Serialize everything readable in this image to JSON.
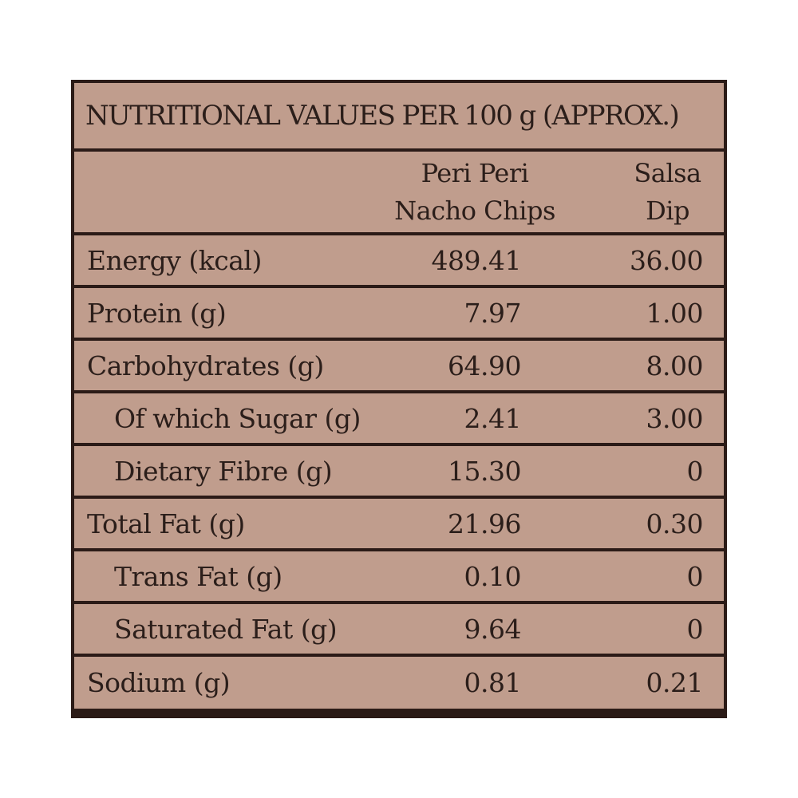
{
  "table": {
    "title": "NUTRITIONAL VALUES PER 100 g (APPROX.)",
    "columns": [
      {
        "line1": "Peri Peri",
        "line2": "Nacho Chips"
      },
      {
        "line1": "Salsa",
        "line2": "Dip"
      }
    ],
    "rows": [
      {
        "label": "Energy (kcal)",
        "chips": "489.41",
        "dip": "36.00"
      },
      {
        "label": "Protein (g)",
        "chips": "7.97",
        "dip": "1.00"
      },
      {
        "label": "Carbohydrates (g)",
        "chips": "64.90",
        "dip": "8.00"
      },
      {
        "label": "Of which Sugar (g)",
        "chips": "2.41",
        "dip": "3.00"
      },
      {
        "label": "Dietary Fibre (g)",
        "chips": "15.30",
        "dip": "0"
      },
      {
        "label": "Total Fat (g)",
        "chips": "21.96",
        "dip": "0.30"
      },
      {
        "label": "Trans Fat (g)",
        "chips": "0.10",
        "dip": "0"
      },
      {
        "label": "Saturated Fat (g)",
        "chips": "9.64",
        "dip": "0"
      },
      {
        "label": "Sodium (g)",
        "chips": "0.81",
        "dip": "0.21"
      }
    ],
    "colors": {
      "cell_fill": "#c09d8d",
      "border": "#2b1b17",
      "text": "#2b1e1a"
    }
  }
}
